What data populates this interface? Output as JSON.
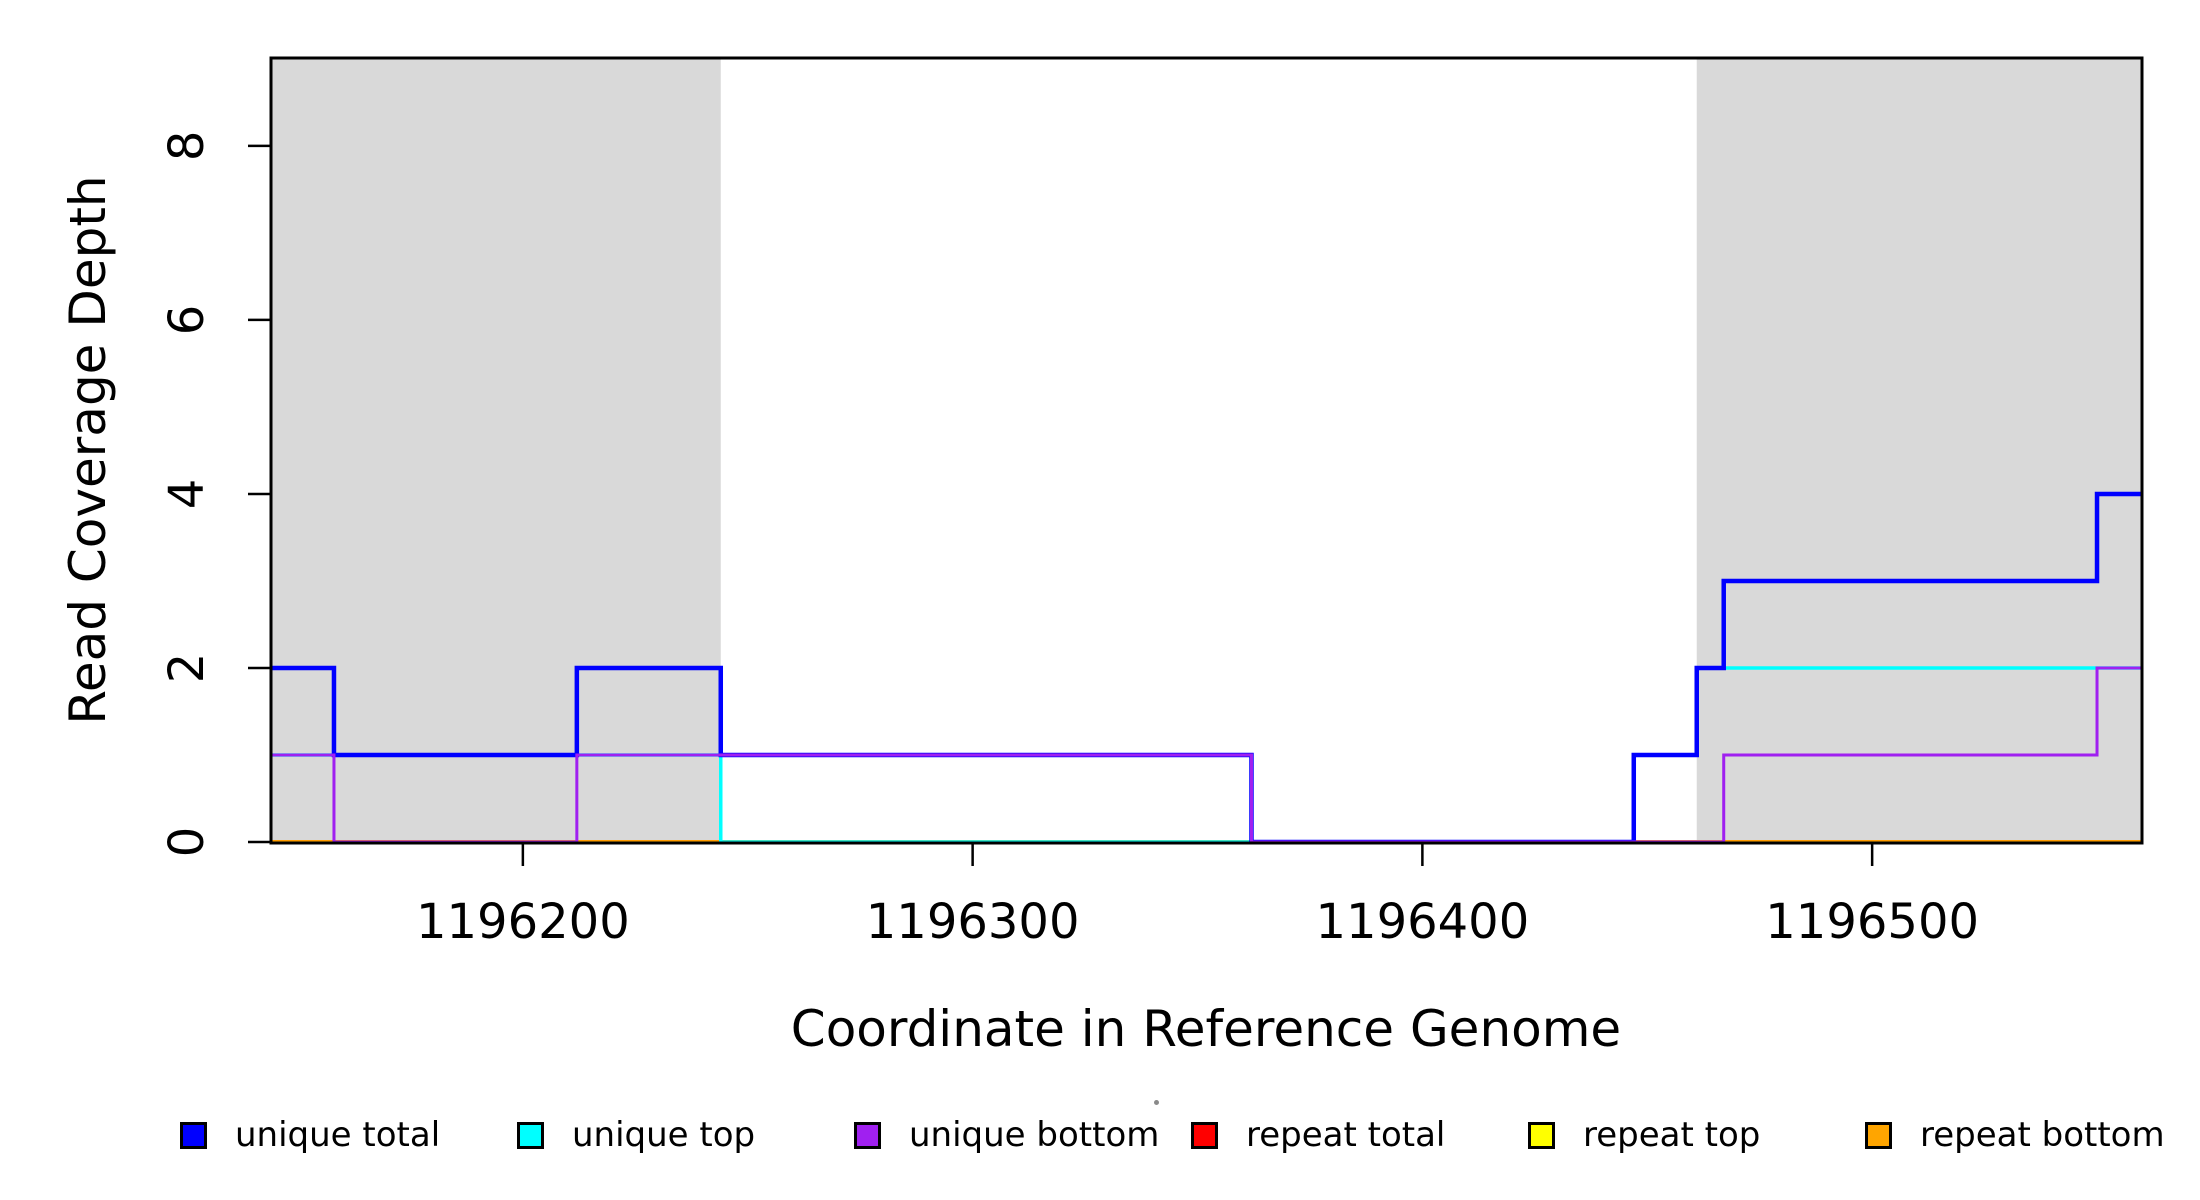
{
  "chart_data": {
    "type": "line",
    "subtype": "step",
    "title": "",
    "xlabel": "Coordinate in Reference Genome",
    "ylabel": "Read Coverage Depth",
    "xlim": [
      1196144,
      1196560
    ],
    "ylim": [
      0,
      9.01
    ],
    "x_ticks": [
      1196200,
      1196300,
      1196400,
      1196500
    ],
    "y_ticks": [
      0,
      2,
      4,
      6,
      8
    ],
    "grid": false,
    "background_color": "#FFFFFF",
    "shade_color": "#D9D9D9",
    "axis_color": "#000000",
    "shaded_regions": [
      {
        "start": 1196144,
        "end": 1196244
      },
      {
        "start": 1196461,
        "end": 1196560
      }
    ],
    "series": [
      {
        "name": "repeat total",
        "color": "#FF0000",
        "width": 4.0,
        "steps": [
          [
            1196144,
            0
          ],
          [
            1196560,
            0
          ]
        ]
      },
      {
        "name": "repeat top",
        "color": "#FFFF00",
        "width": 3.5,
        "steps": [
          [
            1196144,
            0
          ],
          [
            1196560,
            0
          ]
        ]
      },
      {
        "name": "repeat bottom",
        "color": "#FFA500",
        "width": 3.5,
        "steps": [
          [
            1196144,
            0
          ],
          [
            1196560,
            0
          ]
        ]
      },
      {
        "name": "unique top",
        "color": "#00FFFF",
        "width": 3.5,
        "steps": [
          [
            1196144,
            1
          ],
          [
            1196244,
            0
          ],
          [
            1196447,
            1
          ],
          [
            1196461,
            2
          ],
          [
            1196560,
            2
          ]
        ]
      },
      {
        "name": "unique total",
        "color": "#0000FF",
        "width": 4.5,
        "steps": [
          [
            1196144,
            2
          ],
          [
            1196158,
            1
          ],
          [
            1196212,
            2
          ],
          [
            1196244,
            1
          ],
          [
            1196362,
            0
          ],
          [
            1196447,
            1
          ],
          [
            1196461,
            2
          ],
          [
            1196467,
            3
          ],
          [
            1196550,
            4
          ],
          [
            1196560,
            4
          ]
        ]
      },
      {
        "name": "unique bottom",
        "color": "#A020F0",
        "width": 3.0,
        "steps": [
          [
            1196144,
            1
          ],
          [
            1196158,
            0
          ],
          [
            1196212,
            1
          ],
          [
            1196362,
            0
          ],
          [
            1196467,
            1
          ],
          [
            1196550,
            2
          ],
          [
            1196560,
            2
          ]
        ]
      }
    ],
    "legend_position": "bottom"
  },
  "legend": {
    "items": [
      {
        "label": "unique total",
        "color": "#0000FF"
      },
      {
        "label": "unique top",
        "color": "#00FFFF"
      },
      {
        "label": "unique bottom",
        "color": "#A020F0"
      },
      {
        "label": "repeat total",
        "color": "#FF0000"
      },
      {
        "label": "repeat top",
        "color": "#FFFF00"
      },
      {
        "label": "repeat bottom",
        "color": "#FFA500"
      }
    ]
  },
  "labels": {
    "xlab": "Coordinate in Reference Genome",
    "ylab": "Read Coverage Depth"
  }
}
